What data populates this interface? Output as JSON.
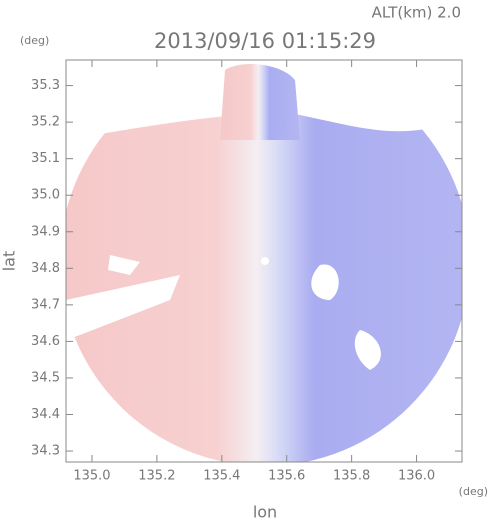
{
  "chart_data": {
    "type": "radar-image",
    "title": "2013/09/16 01:15:29",
    "altitude_label": "ALT(km) 2.0",
    "y_unit": "(deg)",
    "x_unit": "(deg)",
    "xlabel": "lon",
    "ylabel": "lat",
    "xlim": [
      134.92,
      136.14
    ],
    "ylim": [
      34.27,
      35.37
    ],
    "xticks": [
      {
        "value": 135.0,
        "label": "135.0"
      },
      135.2,
      135.4,
      135.6,
      135.8,
      {
        "value": 136.0,
        "label": "136.0"
      }
    ],
    "yticks": [
      34.3,
      34.4,
      34.5,
      34.6,
      34.7,
      34.8,
      34.9,
      {
        "value": 35.0,
        "label": "35.0"
      },
      35.1,
      35.2,
      35.3
    ]
  }
}
